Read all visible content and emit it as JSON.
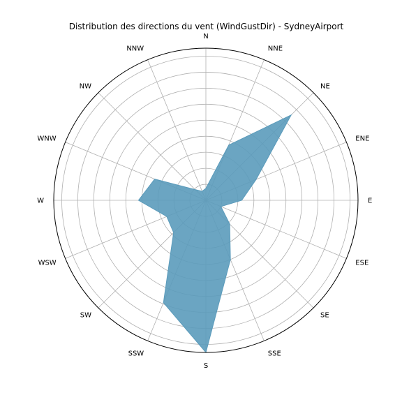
{
  "chart_data": {
    "type": "radar",
    "title": "Distribution des directions du vent (WindGustDir) - SydneyAirport",
    "categories": [
      "N",
      "NNE",
      "NE",
      "ENE",
      "E",
      "ESE",
      "SE",
      "SSE",
      "S",
      "SSW",
      "SW",
      "WSW",
      "W",
      "WNW",
      "NW",
      "NNW"
    ],
    "values": [
      110,
      550,
      1110,
      500,
      330,
      150,
      310,
      590,
      1400,
      1020,
      420,
      390,
      620,
      510,
      140,
      90
    ],
    "rlim": [
      0,
      1400
    ],
    "ring_count": 9,
    "grid": true,
    "colors": {
      "fill": "#5b9bbb",
      "grid": "#b0b0b0",
      "frame": "#000000"
    }
  }
}
